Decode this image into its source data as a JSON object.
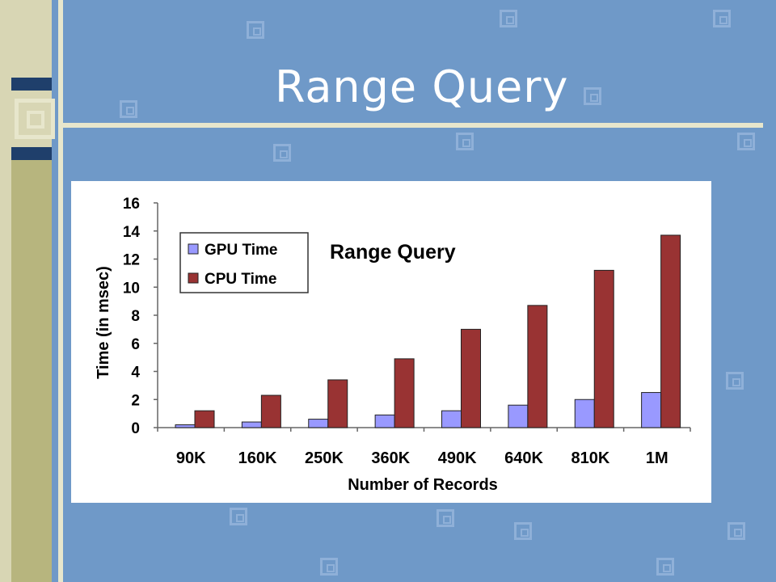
{
  "slide": {
    "title": "Range Query",
    "colors": {
      "background": "#6f99c8",
      "accent_navy": "#1f3f6b",
      "band_light": "#d8d6b4",
      "band_olive": "#b7b57e"
    }
  },
  "chart_data": {
    "type": "bar",
    "title": "Range Query",
    "xlabel": "Number of Records",
    "ylabel": "Time (in msec)",
    "ylim": [
      0,
      16
    ],
    "yticks": [
      0,
      2,
      4,
      6,
      8,
      10,
      12,
      14,
      16
    ],
    "grid": false,
    "legend_position": "top-left",
    "categories": [
      "90K",
      "160K",
      "250K",
      "360K",
      "490K",
      "640K",
      "810K",
      "1M"
    ],
    "series": [
      {
        "name": "GPU Time",
        "color": "#9999ff",
        "values": [
          0.2,
          0.4,
          0.6,
          0.9,
          1.2,
          1.6,
          2.0,
          2.5
        ]
      },
      {
        "name": "CPU Time",
        "color": "#993333",
        "values": [
          1.2,
          2.3,
          3.4,
          4.9,
          7.0,
          8.7,
          11.2,
          13.7
        ]
      }
    ]
  }
}
